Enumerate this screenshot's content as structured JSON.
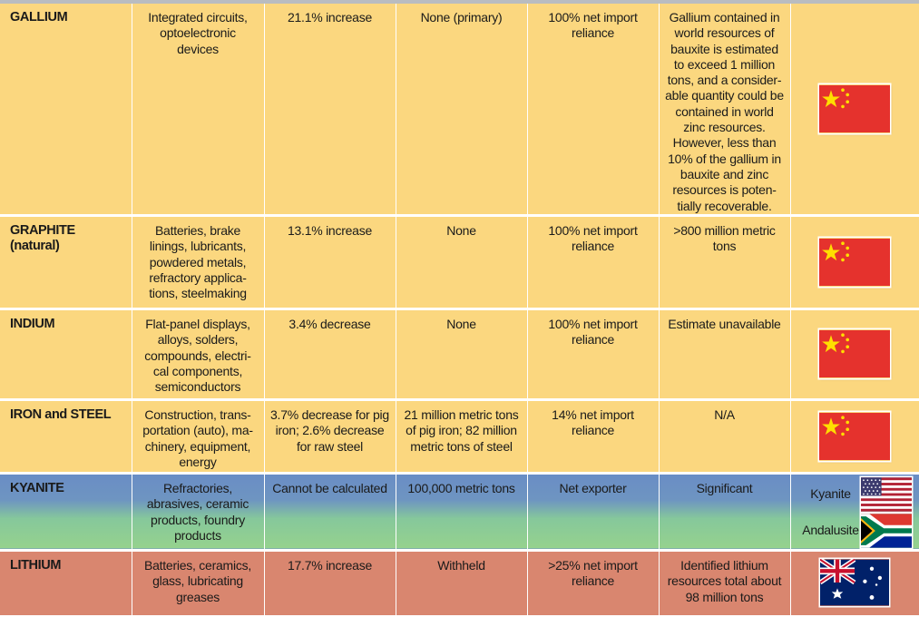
{
  "rows": [
    {
      "name": "GALLIUM",
      "uses": "Integrated circuits, optoelectronic devices",
      "change": "21.1% increase",
      "production": "None (primary)",
      "reliance": "100% net import reliance",
      "resources": "Gallium contained in world resources of bauxite is estimated to exceed 1 million tons, and a consider-able quantity could be contained in world zinc resources. However, less than 10% of the gallium in bauxite and zinc resources is poten-tially recoverable.",
      "flag": "china-flag-icon"
    },
    {
      "name": "GRAPHITE (natural)",
      "uses": "Batteries, brake linings, lubricants, powdered metals, refractory applica-tions, steelmaking",
      "change": "13.1% increase",
      "production": "None",
      "reliance": "100% net import reliance",
      "resources": ">800 million metric tons",
      "flag": "china-flag-icon"
    },
    {
      "name": "INDIUM",
      "uses": "Flat-panel displays, alloys, solders, compounds, electri-cal components, semiconductors",
      "change": "3.4% decrease",
      "production": "None",
      "reliance": "100% net import reliance",
      "resources": "Estimate unavailable",
      "flag": "china-flag-icon"
    },
    {
      "name": "IRON and STEEL",
      "uses": "Construction, trans-portation (auto), ma-chinery, equipment, energy",
      "change": "3.7% decrease for pig iron; 2.6% decrease for raw steel",
      "production": "21 million metric tons of pig iron; 82 million metric tons of steel",
      "reliance": "14% net import reliance",
      "resources": "N/A",
      "flag": "china-flag-icon"
    },
    {
      "name": "KYANITE",
      "uses": "Refractories, abrasives, ceramic products, foundry products",
      "change": "Cannot be calculated",
      "production": "100,000 metric tons",
      "reliance": "Net exporter",
      "resources": "Significant",
      "flag_labels": [
        "Kyanite",
        "Andalusite"
      ],
      "flags": [
        "usa-flag-icon",
        "south-africa-flag-icon"
      ]
    },
    {
      "name": "LITHIUM",
      "uses": "Batteries, ceramics, glass, lubricating greases",
      "change": "17.7% increase",
      "production": "Withheld",
      "reliance": ">25% net import reliance",
      "resources": "Identified lithium resources total about 98 million tons",
      "flag": "australia-flag-icon"
    }
  ],
  "colors": {
    "row_yellow": "#fbd77f",
    "row_blue": "#6a8dc5",
    "row_green": "#96d28d",
    "row_red": "#d9866f",
    "china_red": "#e5322d",
    "china_star": "#ffde00"
  }
}
